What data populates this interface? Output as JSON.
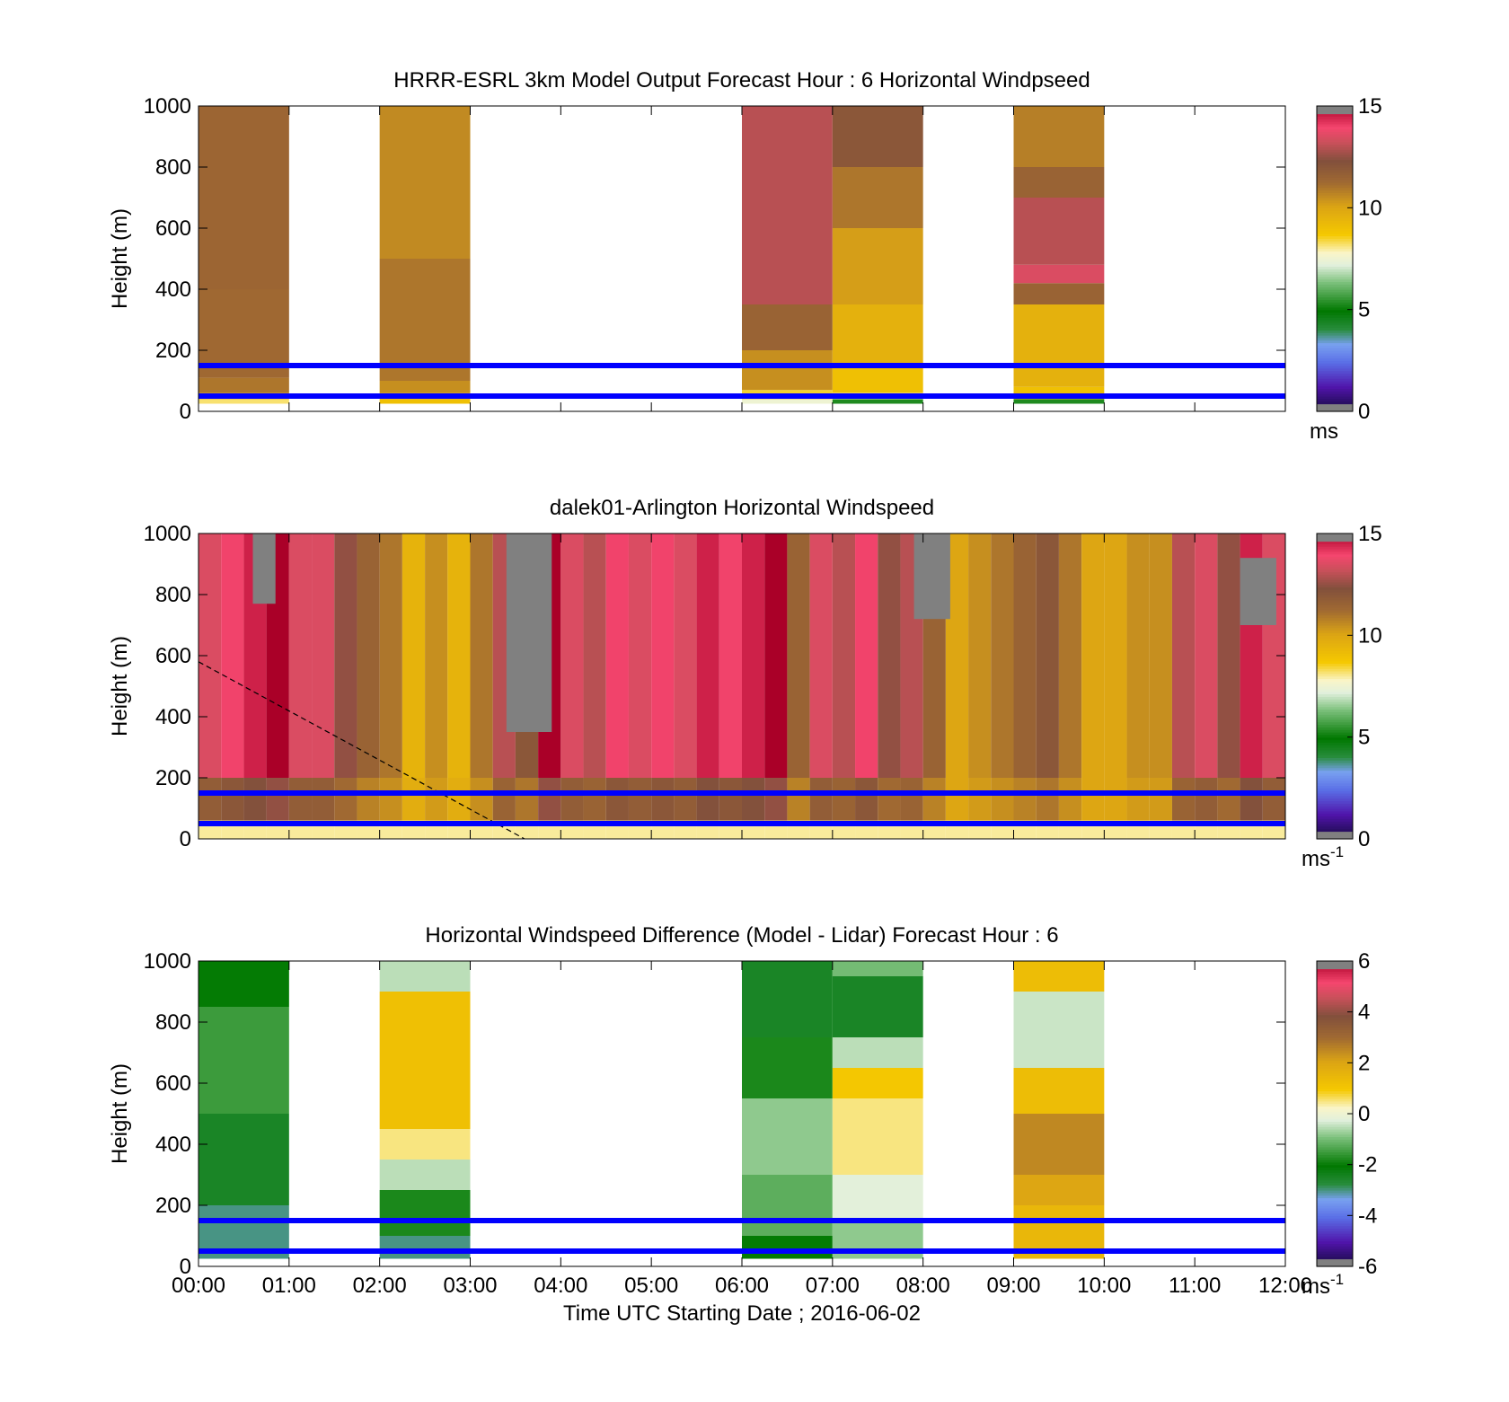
{
  "figure": {
    "xlabel": "Time UTC  Starting Date ; 2016-06-02",
    "x_ticks": [
      "00:00",
      "01:00",
      "02:00",
      "03:00",
      "04:00",
      "05:00",
      "06:00",
      "07:00",
      "08:00",
      "09:00",
      "10:00",
      "11:00",
      "12:00"
    ],
    "y_ticks": [
      "0",
      "200",
      "400",
      "600",
      "800",
      "1000"
    ],
    "ylabel": "Height (m)"
  },
  "chart_data": [
    {
      "type": "heatmap",
      "title": "HRRR-ESRL 3km Model Output   Forecast Hour : 6 Horizontal Windpseed",
      "ylabel": "Height (m)",
      "xlim": [
        0,
        12
      ],
      "ylim": [
        0,
        1000
      ],
      "colorbar": {
        "range": [
          0,
          15
        ],
        "ticks": [
          "0",
          "5",
          "10",
          "15"
        ],
        "unit": "ms",
        "unit_sup": ""
      },
      "reference_lines_m": [
        50,
        150
      ],
      "columns": [
        {
          "start_hour": 0,
          "end_hour": 1,
          "segments": [
            [
              25,
              40,
              8.2
            ],
            [
              40,
              60,
              9.8
            ],
            [
              60,
              110,
              11.0
            ],
            [
              110,
              400,
              11.3
            ],
            [
              400,
              1000,
              11.4
            ]
          ]
        },
        {
          "start_hour": 2,
          "end_hour": 3,
          "segments": [
            [
              25,
              40,
              9.0
            ],
            [
              40,
              60,
              9.8
            ],
            [
              60,
              100,
              10.5
            ],
            [
              100,
              500,
              11.0
            ],
            [
              500,
              1000,
              10.6
            ]
          ]
        },
        {
          "start_hour": 6,
          "end_hour": 7,
          "segments": [
            [
              25,
              40,
              7.5
            ],
            [
              40,
              70,
              8.5
            ],
            [
              70,
              200,
              10.5
            ],
            [
              200,
              350,
              11.5
            ],
            [
              350,
              1000,
              13.0
            ]
          ]
        },
        {
          "start_hour": 7,
          "end_hour": 8,
          "segments": [
            [
              25,
              40,
              5.3
            ],
            [
              40,
              60,
              7.8
            ],
            [
              60,
              150,
              9.0
            ],
            [
              150,
              350,
              9.6
            ],
            [
              350,
              600,
              10.2
            ],
            [
              600,
              800,
              11.0
            ],
            [
              800,
              1000,
              12.0
            ]
          ]
        },
        {
          "start_hour": 9,
          "end_hour": 10,
          "segments": [
            [
              25,
              40,
              5.3
            ],
            [
              40,
              80,
              9.0
            ],
            [
              80,
              350,
              9.6
            ],
            [
              350,
              420,
              11.5
            ],
            [
              420,
              480,
              13.5
            ],
            [
              480,
              700,
              13.0
            ],
            [
              700,
              800,
              11.5
            ],
            [
              800,
              1000,
              10.8
            ]
          ]
        }
      ]
    },
    {
      "type": "heatmap",
      "title": "dalek01-Arlington  Horizontal Windspeed",
      "ylabel": "Height (m)",
      "xlim": [
        0,
        12
      ],
      "ylim": [
        0,
        1000
      ],
      "colorbar": {
        "range": [
          0,
          15
        ],
        "ticks": [
          "0",
          "5",
          "10",
          "15"
        ],
        "unit": "ms",
        "unit_sup": "-1"
      },
      "reference_lines_m": [
        50,
        150
      ],
      "dashed_line": [
        [
          0,
          580
        ],
        [
          3.6,
          0
        ]
      ],
      "column_width_hours": 0.25,
      "column_base_speeds": [
        13.5,
        14.0,
        14.5,
        15.0,
        13.5,
        13.5,
        12.5,
        11.5,
        11.0,
        9.5,
        10.5,
        9.5,
        11.0,
        13.0,
        12.0,
        15.0,
        13.5,
        13.0,
        14.0,
        13.5,
        14.0,
        13.5,
        14.5,
        14.0,
        14.5,
        15.0,
        11.5,
        13.5,
        13.0,
        14.0,
        12.5,
        13.0,
        11.5,
        10.0,
        10.5,
        11.0,
        11.5,
        12.0,
        11.0,
        10.0,
        10.0,
        10.5,
        10.5,
        13.0,
        13.5,
        12.5,
        14.5,
        13.5
      ],
      "surface_layer_speed": 8.0,
      "missing_regions": [
        {
          "start_hour": 0.6,
          "end_hour": 0.85,
          "from_m": 770,
          "to_m": 1000
        },
        {
          "start_hour": 3.4,
          "end_hour": 3.9,
          "from_m": 350,
          "to_m": 1000
        },
        {
          "start_hour": 7.9,
          "end_hour": 8.3,
          "from_m": 720,
          "to_m": 1000
        },
        {
          "start_hour": 11.5,
          "end_hour": 11.9,
          "from_m": 700,
          "to_m": 920
        }
      ]
    },
    {
      "type": "heatmap",
      "title": "Horizontal Windspeed Difference (Model - Lidar) Forecast Hour : 6",
      "ylabel": "Height (m)",
      "xlabel": "Time UTC  Starting Date ; 2016-06-02",
      "xlim": [
        0,
        12
      ],
      "ylim": [
        0,
        1000
      ],
      "colorbar": {
        "range": [
          -6,
          6
        ],
        "ticks": [
          "-6",
          "-4",
          "-2",
          "0",
          "2",
          "4",
          "6"
        ],
        "unit": "ms",
        "unit_sup": "-1"
      },
      "reference_lines_m": [
        50,
        150
      ],
      "columns": [
        {
          "start_hour": 0,
          "end_hour": 1,
          "segments": [
            [
              25,
              200,
              -3.0
            ],
            [
              200,
              500,
              -2.5
            ],
            [
              500,
              850,
              -1.5
            ],
            [
              850,
              1000,
              -2.0
            ]
          ]
        },
        {
          "start_hour": 2,
          "end_hour": 3,
          "segments": [
            [
              25,
              100,
              -3.0
            ],
            [
              100,
              250,
              -1.8
            ],
            [
              250,
              350,
              -0.5
            ],
            [
              350,
              450,
              0.5
            ],
            [
              450,
              900,
              1.2
            ],
            [
              900,
              1000,
              -0.5
            ]
          ]
        },
        {
          "start_hour": 6,
          "end_hour": 7,
          "segments": [
            [
              25,
              100,
              -2.0
            ],
            [
              100,
              300,
              -1.2
            ],
            [
              300,
              550,
              -0.8
            ],
            [
              550,
              750,
              -1.8
            ],
            [
              750,
              1000,
              -2.5
            ]
          ]
        },
        {
          "start_hour": 7,
          "end_hour": 8,
          "segments": [
            [
              25,
              150,
              -0.8
            ],
            [
              150,
              300,
              -0.2
            ],
            [
              300,
              550,
              0.5
            ],
            [
              550,
              650,
              1.0
            ],
            [
              650,
              750,
              -0.5
            ],
            [
              750,
              950,
              -2.5
            ],
            [
              950,
              1000,
              -1.0
            ]
          ]
        },
        {
          "start_hour": 9,
          "end_hour": 10,
          "segments": [
            [
              25,
              200,
              1.5
            ],
            [
              200,
              300,
              2.0
            ],
            [
              300,
              500,
              2.5
            ],
            [
              500,
              650,
              1.3
            ],
            [
              650,
              900,
              -0.4
            ],
            [
              900,
              1000,
              1.3
            ]
          ]
        }
      ]
    }
  ]
}
